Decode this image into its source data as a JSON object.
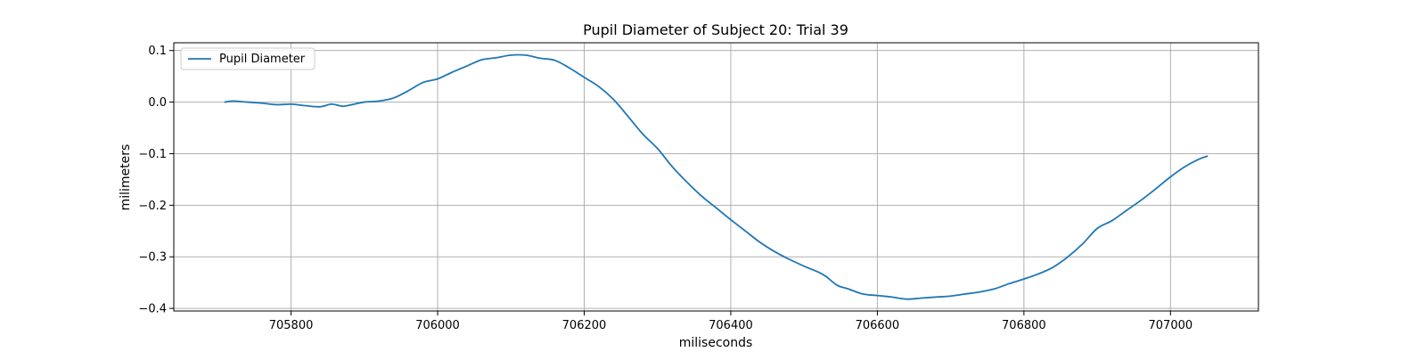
{
  "chart_data": {
    "type": "line",
    "title": "Pupil Diameter of Subject 20: Trial 39",
    "xlabel": "miliseconds",
    "ylabel": "milimeters",
    "xlim": [
      705640,
      707120
    ],
    "ylim": [
      -0.405,
      0.115
    ],
    "xticks": [
      705800,
      706000,
      706200,
      706400,
      706600,
      706800,
      707000
    ],
    "xtick_labels": [
      "705800",
      "706000",
      "706200",
      "706400",
      "706600",
      "706800",
      "707000"
    ],
    "yticks": [
      0.1,
      0.0,
      -0.1,
      -0.2,
      -0.3,
      -0.4
    ],
    "ytick_labels": [
      "0.1",
      "0.0",
      "−0.1",
      "−0.2",
      "−0.3",
      "−0.4"
    ],
    "grid": true,
    "legend_position": "upper-left",
    "series": [
      {
        "name": "Pupil Diameter",
        "color": "#1f77b4",
        "x": [
          705710,
          705720,
          705740,
          705760,
          705780,
          705800,
          705820,
          705840,
          705855,
          705870,
          705880,
          705900,
          705920,
          705940,
          705960,
          705980,
          706000,
          706020,
          706040,
          706060,
          706080,
          706100,
          706120,
          706140,
          706160,
          706180,
          706200,
          706220,
          706240,
          706260,
          706280,
          706300,
          706320,
          706340,
          706360,
          706380,
          706400,
          706420,
          706440,
          706460,
          706480,
          706500,
          706520,
          706530,
          706545,
          706560,
          706580,
          706600,
          706620,
          706640,
          706660,
          706680,
          706700,
          706720,
          706740,
          706760,
          706780,
          706800,
          706820,
          706840,
          706860,
          706880,
          706900,
          706920,
          706940,
          706960,
          706980,
          707000,
          707020,
          707040,
          707050
        ],
        "y": [
          0.0,
          0.002,
          0.0,
          -0.002,
          -0.005,
          -0.004,
          -0.007,
          -0.009,
          -0.004,
          -0.008,
          -0.006,
          0.0,
          0.002,
          0.008,
          0.022,
          0.038,
          0.045,
          0.058,
          0.07,
          0.082,
          0.086,
          0.091,
          0.091,
          0.085,
          0.081,
          0.066,
          0.048,
          0.03,
          0.005,
          -0.028,
          -0.062,
          -0.09,
          -0.125,
          -0.155,
          -0.182,
          -0.205,
          -0.228,
          -0.25,
          -0.272,
          -0.29,
          -0.305,
          -0.318,
          -0.33,
          -0.338,
          -0.355,
          -0.362,
          -0.372,
          -0.375,
          -0.378,
          -0.382,
          -0.38,
          -0.378,
          -0.376,
          -0.372,
          -0.368,
          -0.362,
          -0.352,
          -0.343,
          -0.333,
          -0.32,
          -0.3,
          -0.275,
          -0.245,
          -0.23,
          -0.21,
          -0.19,
          -0.168,
          -0.145,
          -0.125,
          -0.11,
          -0.105
        ]
      }
    ]
  }
}
